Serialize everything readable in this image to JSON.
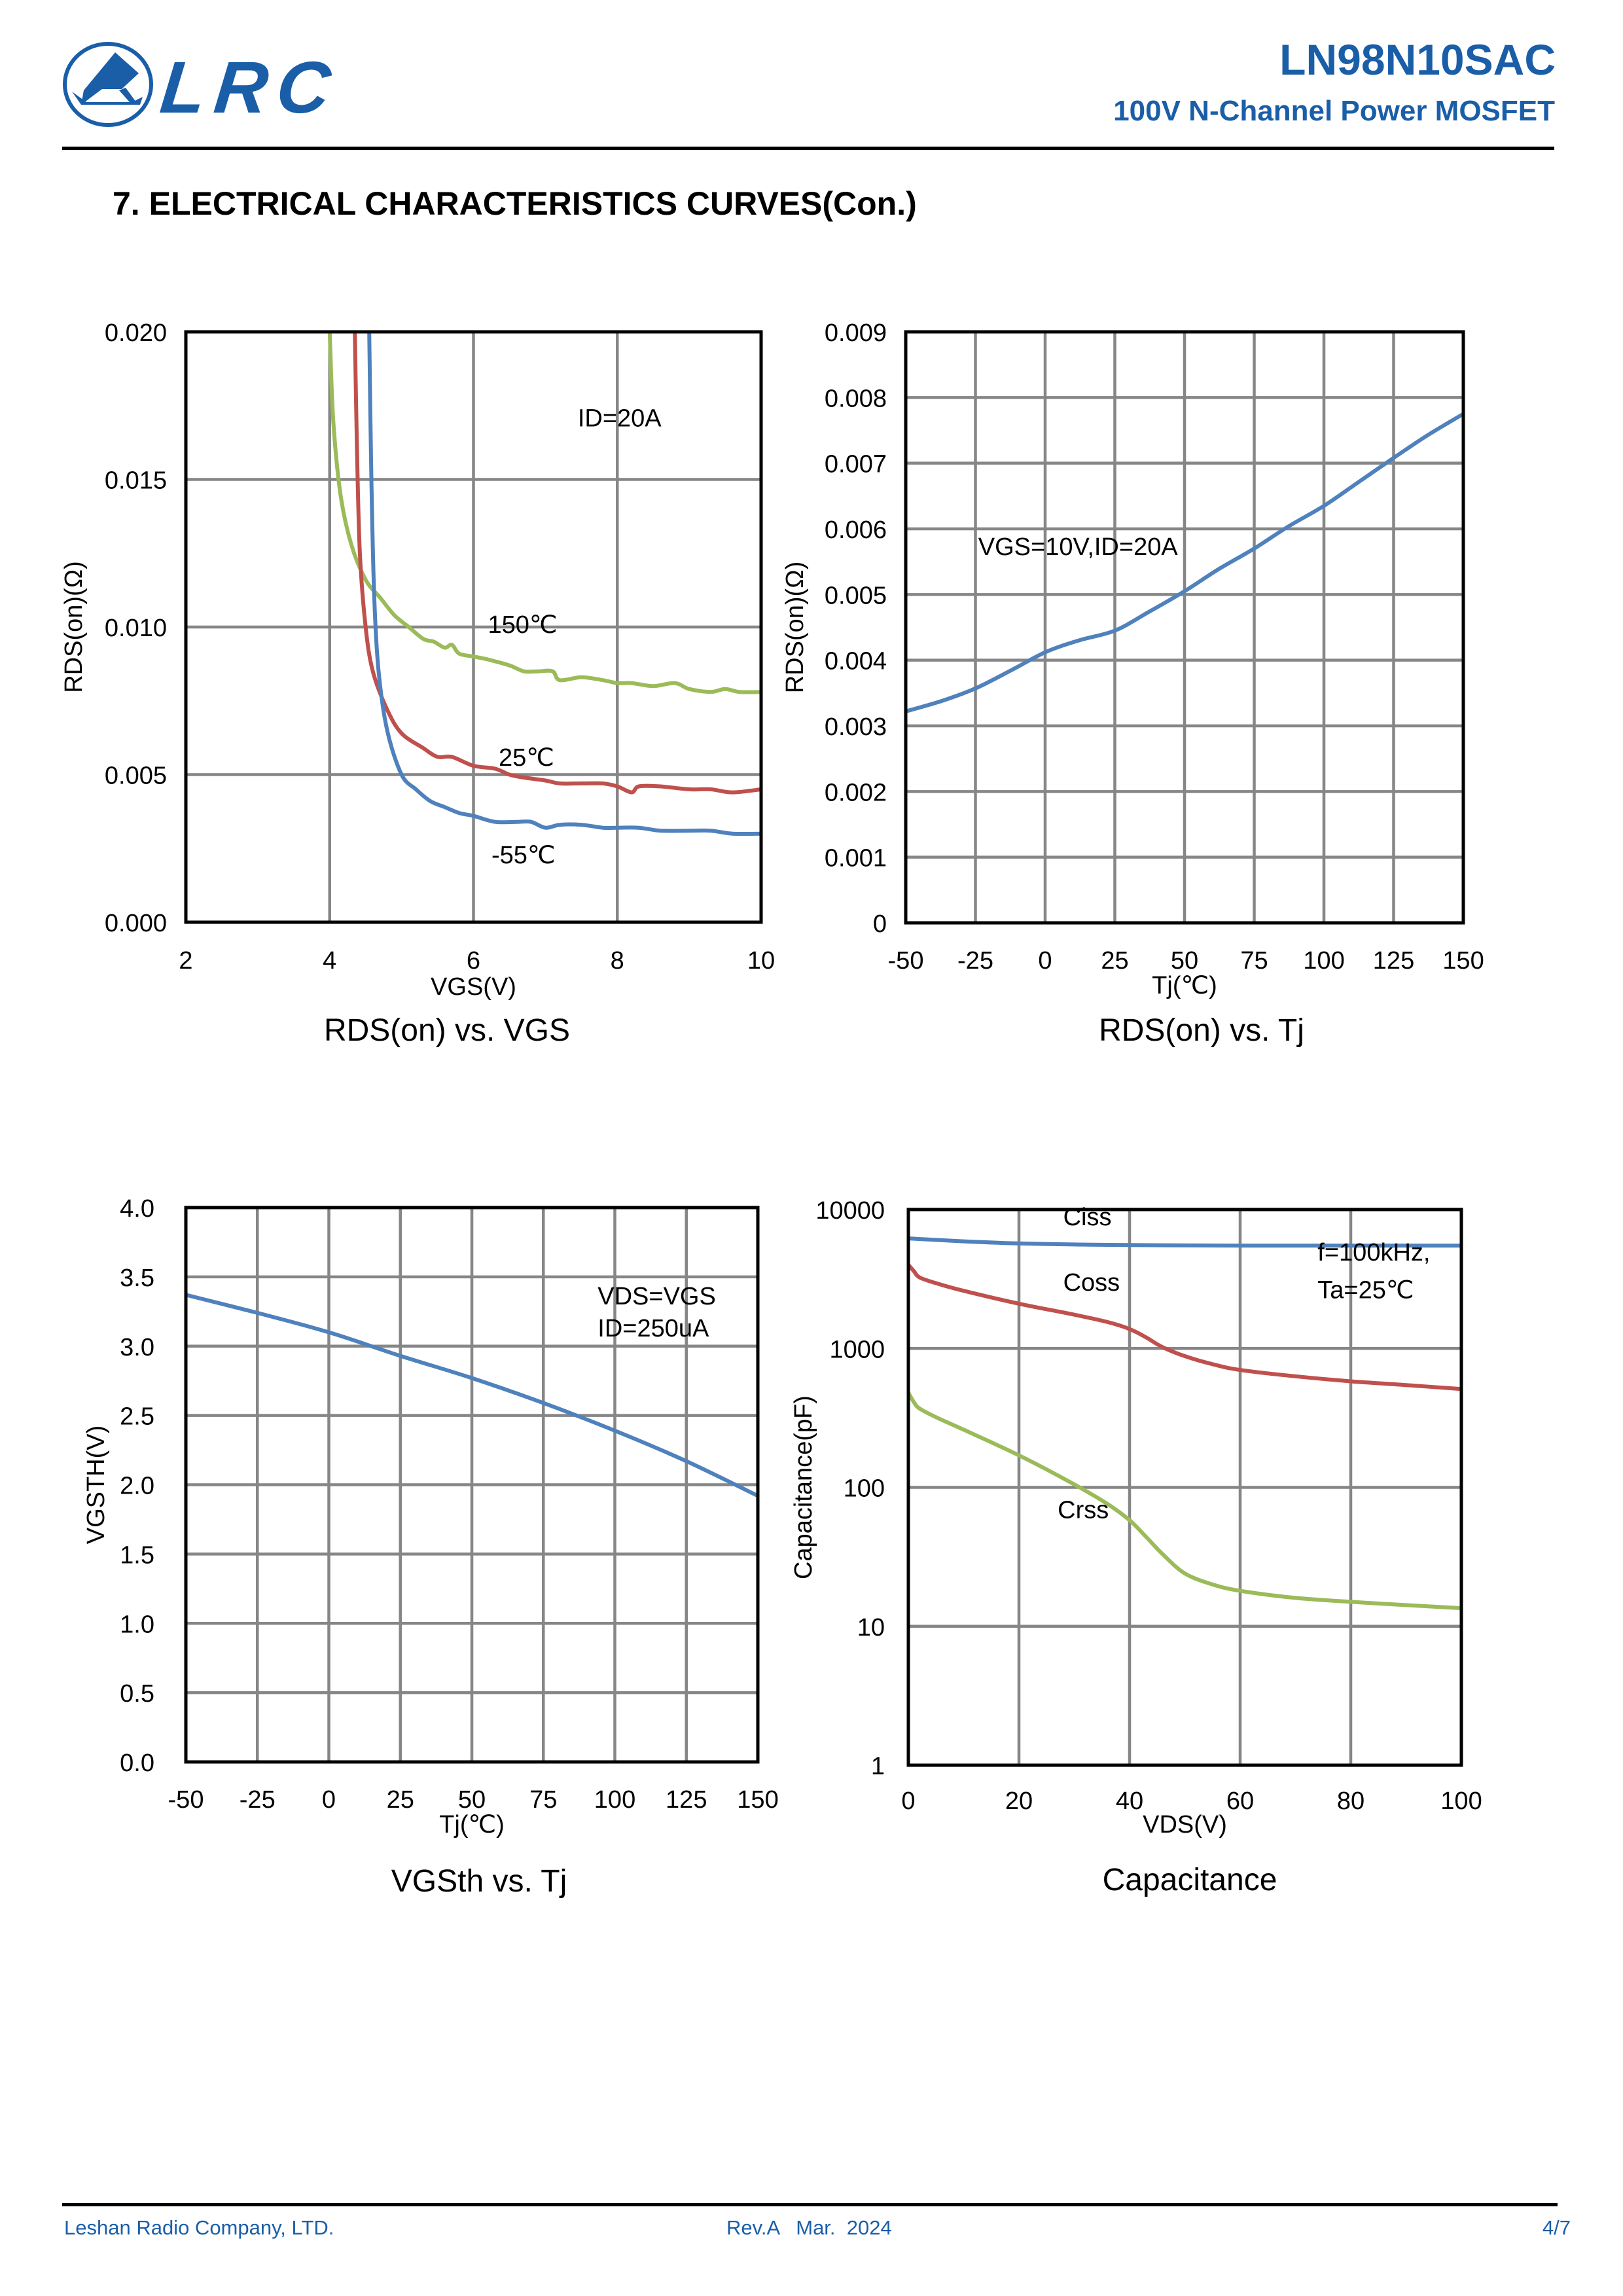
{
  "header": {
    "logo_text": "LRC",
    "part_number": "LN98N10SAC",
    "part_description": "100V N-Channel Power MOSFET",
    "brand_color": "#1a5ea8"
  },
  "section": {
    "title": "7. ELECTRICAL CHARACTERISTICS CURVES(Con.)"
  },
  "footer": {
    "company": "Leshan Radio Company, LTD.",
    "revision": "Rev.A   Mar.  2024",
    "page": "4/7"
  },
  "colors": {
    "blue": "#4f81bd",
    "red": "#c0504d",
    "green": "#9bbb59",
    "grid": "#868686"
  },
  "chart_data": [
    {
      "id": "rds_vgs",
      "type": "line",
      "title": "RDS(on) vs. VGS",
      "xlabel": "VGS(V)",
      "ylabel": "RDS(on)(Ω)",
      "xlim": [
        2,
        10
      ],
      "ylim": [
        0,
        0.02
      ],
      "xticks": [
        2,
        4,
        6,
        8,
        10
      ],
      "xtick_labels": [
        "2",
        "4",
        "6",
        "8",
        "10"
      ],
      "yticks": [
        0,
        0.005,
        0.01,
        0.015,
        0.02
      ],
      "ytick_labels": [
        "0.000",
        "0.005",
        "0.010",
        "0.015",
        "0.020"
      ],
      "grid": true,
      "yscale": "linear",
      "annotations": [
        {
          "text": "ID=20A",
          "x": 7.45,
          "y": 0.0168
        },
        {
          "text": "150℃",
          "x": 6.2,
          "y": 0.0098
        },
        {
          "text": "25℃",
          "x": 6.35,
          "y": 0.0053
        },
        {
          "text": "-55℃",
          "x": 6.25,
          "y": 0.002
        }
      ],
      "series": [
        {
          "name": "150℃",
          "color": "green",
          "x": [
            4.0,
            4.05,
            4.15,
            4.3,
            4.5,
            4.7,
            4.9,
            5.1,
            5.3,
            5.45,
            5.6,
            5.7,
            5.8,
            6.0,
            6.2,
            6.5,
            6.7,
            6.9,
            7.1,
            7.2,
            7.5,
            7.8,
            8.0,
            8.2,
            8.5,
            8.8,
            9.0,
            9.3,
            9.5,
            9.7,
            10.0
          ],
          "y": [
            0.02,
            0.017,
            0.0145,
            0.0128,
            0.0116,
            0.011,
            0.0104,
            0.01,
            0.0096,
            0.0095,
            0.0093,
            0.0094,
            0.0091,
            0.009,
            0.0089,
            0.0087,
            0.0085,
            0.0085,
            0.0085,
            0.0082,
            0.0083,
            0.0082,
            0.0081,
            0.0081,
            0.008,
            0.0081,
            0.0079,
            0.0078,
            0.0079,
            0.0078,
            0.0078
          ]
        },
        {
          "name": "25℃",
          "color": "red",
          "x": [
            4.35,
            4.38,
            4.42,
            4.5,
            4.6,
            4.8,
            5.0,
            5.3,
            5.5,
            5.7,
            6.0,
            6.3,
            6.5,
            6.7,
            7.0,
            7.2,
            7.5,
            7.8,
            8.0,
            8.2,
            8.3,
            8.6,
            9.0,
            9.3,
            9.6,
            10.0
          ],
          "y": [
            0.02,
            0.016,
            0.0125,
            0.01,
            0.0085,
            0.0072,
            0.0064,
            0.0059,
            0.0056,
            0.0056,
            0.0053,
            0.0052,
            0.005,
            0.0049,
            0.0048,
            0.0047,
            0.0047,
            0.0047,
            0.0046,
            0.0044,
            0.0046,
            0.0046,
            0.0045,
            0.0045,
            0.0044,
            0.0045
          ]
        },
        {
          "name": "-55℃",
          "color": "blue",
          "x": [
            4.55,
            4.58,
            4.62,
            4.68,
            4.8,
            5.0,
            5.2,
            5.4,
            5.6,
            5.8,
            6.0,
            6.3,
            6.6,
            6.8,
            7.0,
            7.2,
            7.5,
            7.8,
            8.0,
            8.3,
            8.6,
            9.0,
            9.3,
            9.6,
            10.0
          ],
          "y": [
            0.02,
            0.015,
            0.011,
            0.0085,
            0.0065,
            0.005,
            0.0045,
            0.0041,
            0.0039,
            0.0037,
            0.0036,
            0.0034,
            0.0034,
            0.0034,
            0.0032,
            0.0033,
            0.0033,
            0.0032,
            0.0032,
            0.0032,
            0.0031,
            0.0031,
            0.0031,
            0.003,
            0.003
          ]
        }
      ]
    },
    {
      "id": "rds_tj",
      "type": "line",
      "title": "RDS(on) vs. Tj",
      "xlabel": "Tj(℃)",
      "ylabel": "RDS(on)(Ω)",
      "xlim": [
        -50,
        150
      ],
      "ylim": [
        0,
        0.009
      ],
      "xticks": [
        -50,
        -25,
        0,
        25,
        50,
        75,
        100,
        125,
        150
      ],
      "xtick_labels": [
        "-50",
        "-25",
        "0",
        "25",
        "50",
        "75",
        "100",
        "125",
        "150"
      ],
      "yticks": [
        0,
        0.001,
        0.002,
        0.003,
        0.004,
        0.005,
        0.006,
        0.007,
        0.008,
        0.009
      ],
      "ytick_labels": [
        "0",
        "0.001",
        "0.002",
        "0.003",
        "0.004",
        "0.005",
        "0.006",
        "0.007",
        "0.008",
        "0.009"
      ],
      "grid": true,
      "yscale": "linear",
      "annotations": [
        {
          "text": "VGS=10V,ID=20A",
          "x": -24,
          "y": 0.0056
        }
      ],
      "series": [
        {
          "name": "RDS(on)",
          "color": "blue",
          "x": [
            -50,
            -37,
            -25,
            -12,
            0,
            12,
            25,
            37,
            50,
            62,
            75,
            87,
            100,
            112,
            125,
            137,
            150
          ],
          "y": [
            0.00322,
            0.00338,
            0.00357,
            0.00385,
            0.00412,
            0.0043,
            0.00445,
            0.00473,
            0.00505,
            0.00538,
            0.0057,
            0.00603,
            0.00635,
            0.0067,
            0.00708,
            0.00742,
            0.00775
          ]
        }
      ]
    },
    {
      "id": "vgsth_tj",
      "type": "line",
      "title": "VGSth vs. Tj",
      "xlabel": "Tj(℃)",
      "ylabel": "VGSTH(V)",
      "xlim": [
        -50,
        150
      ],
      "ylim": [
        0,
        4
      ],
      "xticks": [
        -50,
        -25,
        0,
        25,
        50,
        75,
        100,
        125,
        150
      ],
      "xtick_labels": [
        "-50",
        "-25",
        "0",
        "25",
        "50",
        "75",
        "100",
        "125",
        "150"
      ],
      "yticks": [
        0,
        0.5,
        1,
        1.5,
        2,
        2.5,
        3,
        3.5,
        4
      ],
      "ytick_labels": [
        "0.0",
        "0.5",
        "1.0",
        "1.5",
        "2.0",
        "2.5",
        "3.0",
        "3.5",
        "4.0"
      ],
      "grid": true,
      "yscale": "linear",
      "annotations": [
        {
          "text": "VDS=VGS",
          "x": 94,
          "y": 3.3
        },
        {
          "text": "ID=250uA",
          "x": 94,
          "y": 3.07
        }
      ],
      "series": [
        {
          "name": "VGSth",
          "color": "blue",
          "x": [
            -50,
            -25,
            0,
            25,
            50,
            75,
            100,
            125,
            150
          ],
          "y": [
            3.37,
            3.24,
            3.1,
            2.93,
            2.77,
            2.59,
            2.39,
            2.17,
            1.92
          ]
        }
      ]
    },
    {
      "id": "capacitance",
      "type": "line",
      "title": "Capacitance",
      "xlabel": "VDS(V)",
      "ylabel": "Capacitance(pF)",
      "xlim": [
        0,
        100
      ],
      "ylim": [
        1,
        10000
      ],
      "xticks": [
        0,
        20,
        40,
        60,
        80,
        100
      ],
      "xtick_labels": [
        "0",
        "20",
        "40",
        "60",
        "80",
        "100"
      ],
      "yticks": [
        1,
        10,
        100,
        1000,
        10000
      ],
      "ytick_labels": [
        "1",
        "10",
        "100",
        "1000",
        "10000"
      ],
      "grid": true,
      "yscale": "log",
      "annotations": [
        {
          "text": "Ciss",
          "x": 28,
          "y": 7700
        },
        {
          "text": "Coss",
          "x": 28,
          "y": 2600
        },
        {
          "text": "Crss",
          "x": 27,
          "y": 60
        },
        {
          "text": "f=100kHz,",
          "x": 74,
          "y": 4300
        },
        {
          "text": "Ta=25℃",
          "x": 74,
          "y": 2300
        }
      ],
      "series": [
        {
          "name": "Ciss",
          "color": "blue",
          "x": [
            0,
            10,
            20,
            30,
            40,
            60,
            80,
            100
          ],
          "y": [
            6200,
            5900,
            5700,
            5600,
            5550,
            5500,
            5500,
            5500
          ]
        },
        {
          "name": "Coss",
          "color": "red",
          "x": [
            0,
            1,
            2,
            5,
            10,
            20,
            30,
            36,
            40,
            43,
            46,
            50,
            55,
            60,
            70,
            80,
            90,
            100
          ],
          "y": [
            4000,
            3600,
            3250,
            2950,
            2600,
            2100,
            1750,
            1550,
            1380,
            1200,
            1020,
            880,
            770,
            700,
            630,
            580,
            545,
            510
          ]
        },
        {
          "name": "Crss",
          "color": "red_placeholder",
          "x": [
            0,
            1,
            2,
            5,
            10,
            20,
            30,
            36,
            40,
            43,
            46,
            50,
            55,
            60,
            70,
            80,
            90,
            100
          ],
          "y": [
            480,
            410,
            370,
            320,
            260,
            170,
            105,
            76,
            58,
            44,
            33,
            24,
            20,
            18,
            16,
            15,
            14.2,
            13.5
          ]
        }
      ]
    }
  ]
}
